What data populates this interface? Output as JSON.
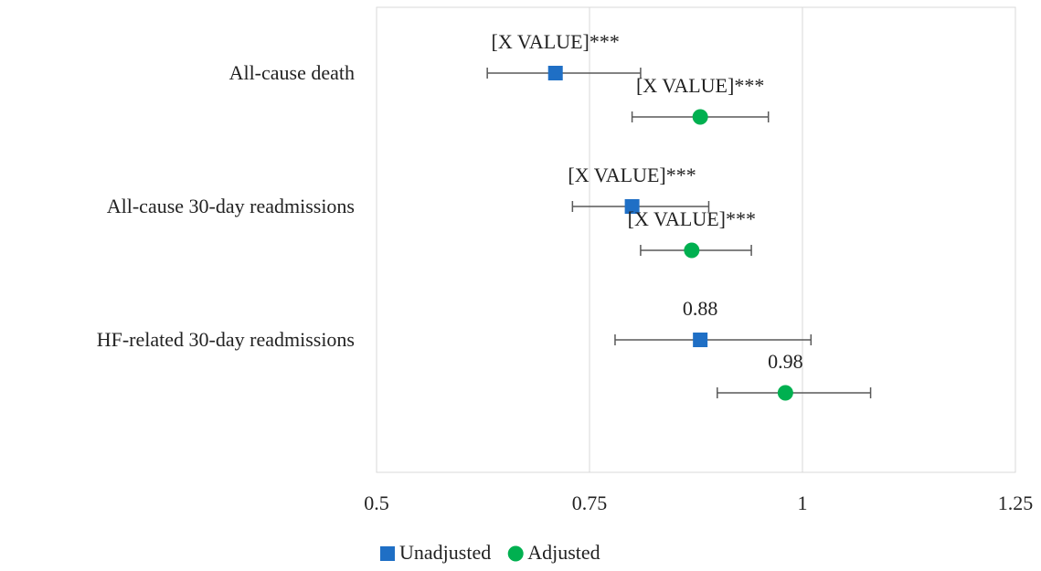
{
  "chart_data": {
    "type": "forest",
    "categories": [
      "All-cause death",
      "All-cause 30-day readmissions",
      "HF-related 30-day readmissions"
    ],
    "series": [
      {
        "name": "Unadjusted",
        "color": "#1f6fc5",
        "marker": "square",
        "values": [
          0.71,
          0.8,
          0.88
        ],
        "ci_low": [
          0.63,
          0.73,
          0.78
        ],
        "ci_high": [
          0.81,
          0.89,
          1.01
        ],
        "value_labels": [
          "[X VALUE]***",
          "[X VALUE]***",
          "0.88"
        ]
      },
      {
        "name": "Adjusted",
        "color": "#00b050",
        "marker": "circle",
        "values": [
          0.88,
          0.87,
          0.98
        ],
        "ci_low": [
          0.8,
          0.81,
          0.9
        ],
        "ci_high": [
          0.96,
          0.94,
          1.08
        ],
        "value_labels": [
          "[X VALUE]***",
          "[X VALUE]***",
          "0.98"
        ]
      }
    ],
    "xlim": [
      0.5,
      1.25
    ],
    "xticks": [
      0.5,
      0.75,
      1,
      1.25
    ],
    "grid": true,
    "legend": "bottom"
  }
}
